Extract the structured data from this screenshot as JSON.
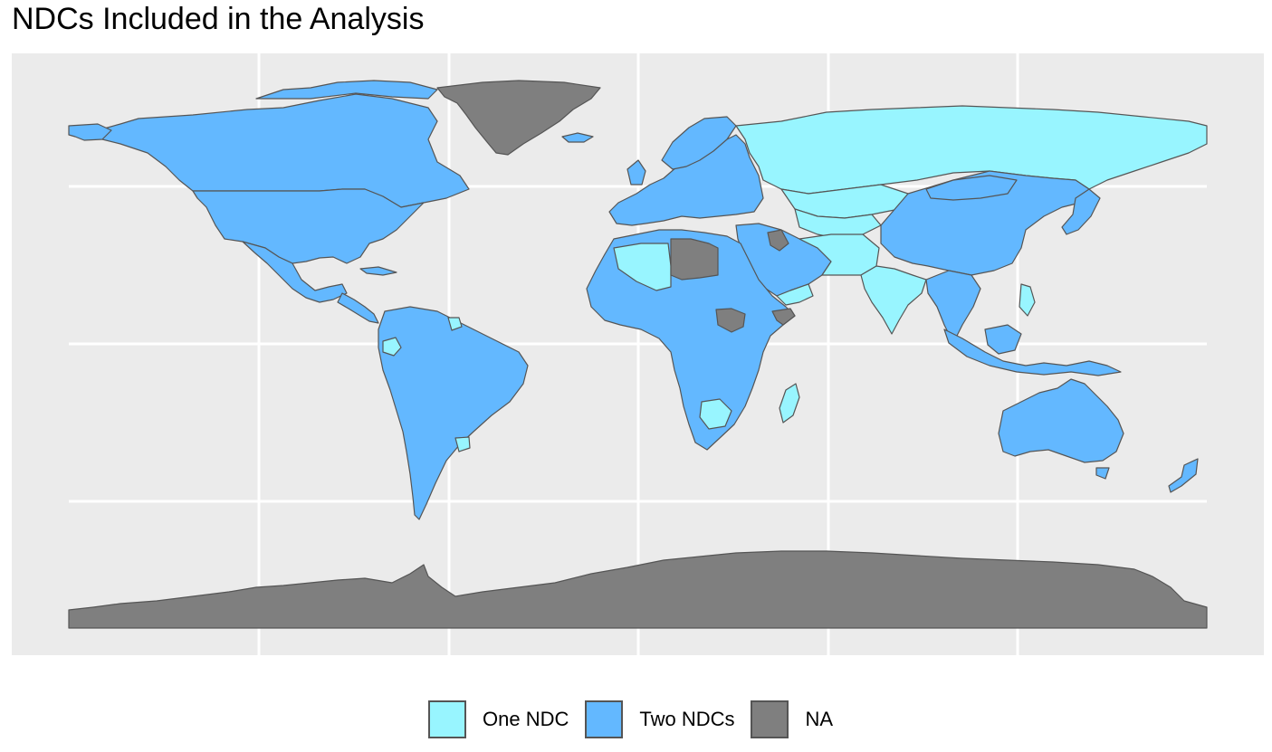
{
  "title": "NDCs Included in the Analysis",
  "colors": {
    "one_ndc": "#98f5ff",
    "two_ndcs": "#63b8ff",
    "na": "#7f7f7f",
    "panel_bg": "#ebebeb",
    "grid": "#ffffff",
    "border": "#555555"
  },
  "legend": {
    "items": [
      {
        "label": "One NDC",
        "color": "#98f5ff"
      },
      {
        "label": "Two NDCs",
        "color": "#63b8ff"
      },
      {
        "label": "NA",
        "color": "#7f7f7f"
      }
    ]
  },
  "map": {
    "regions": [
      {
        "name": "Greenland",
        "category": "NA"
      },
      {
        "name": "Antarctica",
        "category": "NA"
      },
      {
        "name": "Libya",
        "category": "NA"
      },
      {
        "name": "South Sudan",
        "category": "NA"
      },
      {
        "name": "Russia",
        "category": "One NDC"
      },
      {
        "name": "Kazakhstan",
        "category": "One NDC"
      },
      {
        "name": "India",
        "category": "One NDC"
      },
      {
        "name": "Algeria",
        "category": "One NDC"
      },
      {
        "name": "Botswana",
        "category": "One NDC"
      },
      {
        "name": "Madagascar",
        "category": "One NDC"
      },
      {
        "name": "United States",
        "category": "Two NDCs"
      },
      {
        "name": "Canada",
        "category": "Two NDCs"
      },
      {
        "name": "Brazil",
        "category": "Two NDCs"
      },
      {
        "name": "China",
        "category": "Two NDCs"
      },
      {
        "name": "Australia",
        "category": "Two NDCs"
      }
    ]
  }
}
